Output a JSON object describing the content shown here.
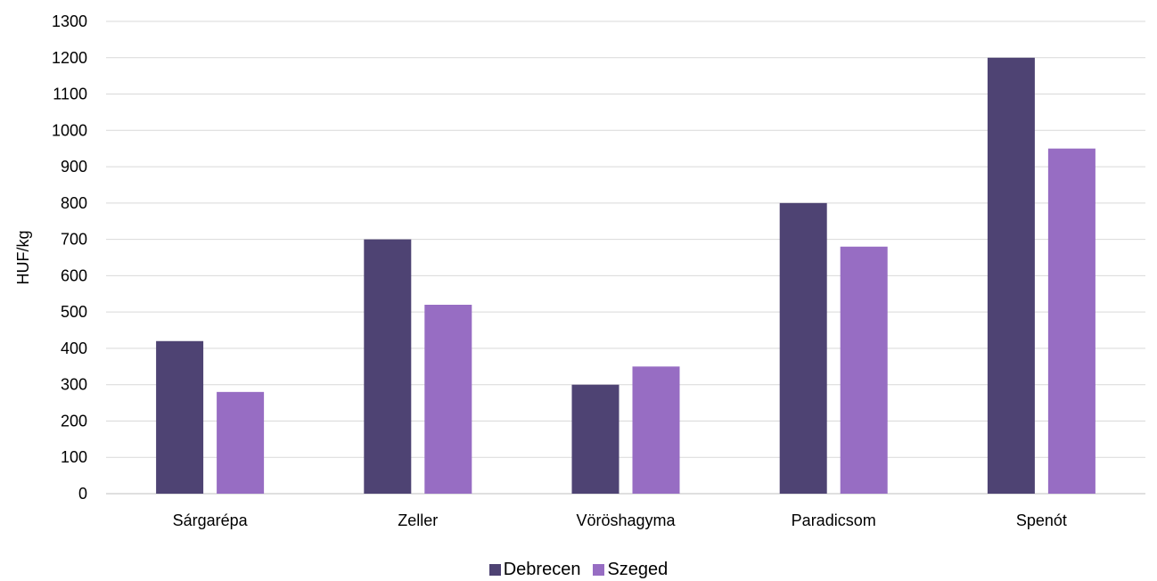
{
  "chart_data": {
    "type": "bar",
    "categories": [
      "Sárgarépa",
      "Zeller",
      "Vöröshagyma",
      "Paradicsom",
      "Spenót"
    ],
    "series": [
      {
        "name": "Debrecen",
        "values": [
          420,
          700,
          300,
          800,
          1200
        ],
        "color": "#4e4373"
      },
      {
        "name": "Szeged",
        "values": [
          280,
          520,
          350,
          680,
          950
        ],
        "color": "#976dc3"
      }
    ],
    "ylabel": "HUF/kg",
    "xlabel": "",
    "ylim": [
      0,
      1300
    ],
    "yticks": [
      "0",
      "100",
      "200",
      "300",
      "400",
      "500",
      "600",
      "700",
      "800",
      "900",
      "1000",
      "1100",
      "1200",
      "1300"
    ],
    "grid": true,
    "legend_position": "bottom"
  }
}
